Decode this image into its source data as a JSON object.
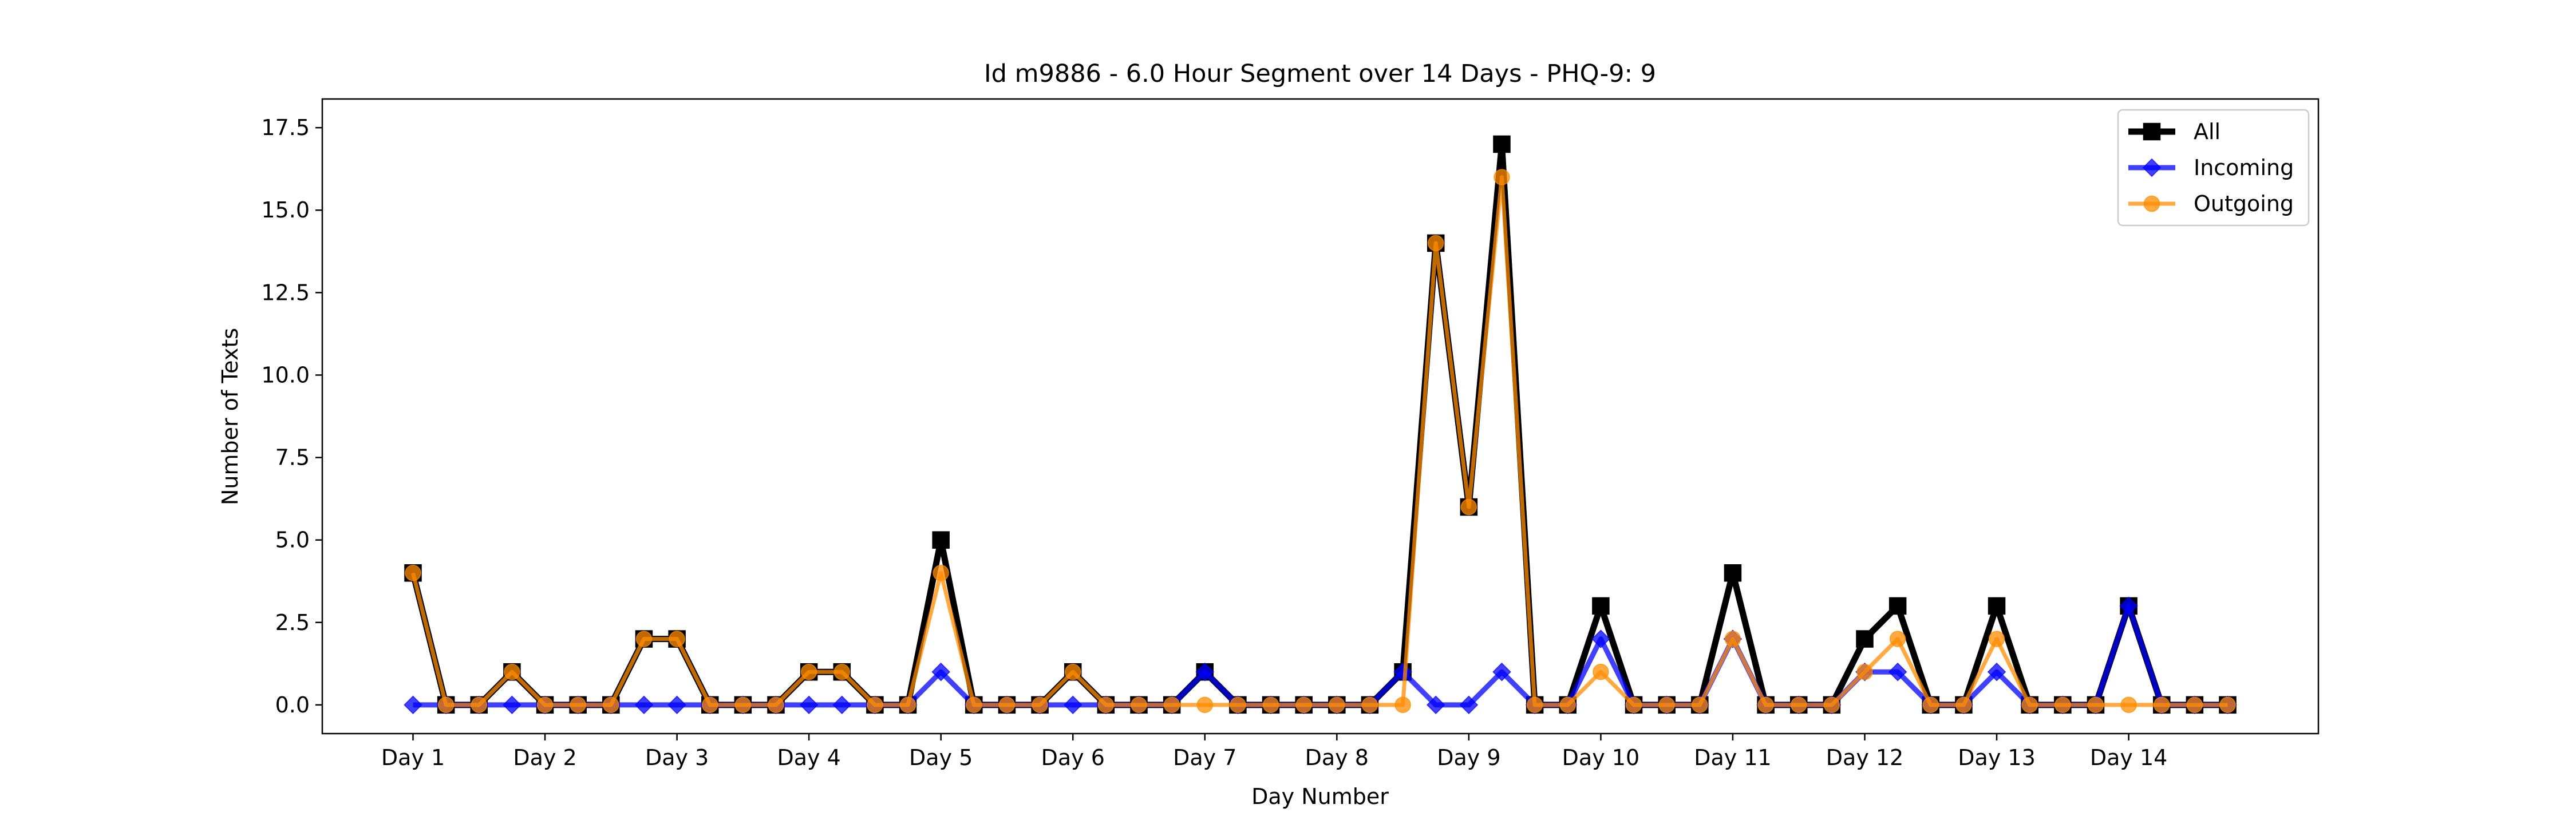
{
  "chart_data": {
    "type": "line",
    "title": "Id m9886 - 6.0 Hour Segment over 14 Days - PHQ-9: 9",
    "xlabel": "Day Number",
    "ylabel": "Number of Texts",
    "ylim": [
      -0.87,
      18.37
    ],
    "yticks": [
      0.0,
      2.5,
      5.0,
      7.5,
      10.0,
      12.5,
      15.0,
      17.5
    ],
    "ytick_labels": [
      "0.0",
      "2.5",
      "5.0",
      "7.5",
      "10.0",
      "12.5",
      "15.0",
      "17.5"
    ],
    "xlim": [
      -2.75,
      57.75
    ],
    "xticks": [
      0,
      4,
      8,
      12,
      16,
      20,
      24,
      28,
      32,
      36,
      40,
      44,
      48,
      52
    ],
    "xtick_labels": [
      "Day 1",
      "Day 2",
      "Day 3",
      "Day 4",
      "Day 5",
      "Day 6",
      "Day 7",
      "Day 8",
      "Day 9",
      "Day 10",
      "Day 11",
      "Day 12",
      "Day 13",
      "Day 14"
    ],
    "grid": false,
    "legend_position": "top-right",
    "series": [
      {
        "name": "All",
        "color": "#000000",
        "marker": "square",
        "values": [
          4,
          0,
          0,
          1,
          0,
          0,
          0,
          2,
          2,
          0,
          0,
          0,
          1,
          1,
          0,
          0,
          5,
          0,
          0,
          0,
          1,
          0,
          0,
          0,
          1,
          0,
          0,
          0,
          0,
          0,
          1,
          14,
          6,
          17,
          0,
          0,
          3,
          0,
          0,
          0,
          4,
          0,
          0,
          0,
          2,
          3,
          0,
          0,
          3,
          0,
          0,
          0,
          3,
          0,
          0,
          0
        ]
      },
      {
        "name": "Incoming",
        "color": "#0000ff",
        "marker": "diamond",
        "values": [
          0,
          0,
          0,
          0,
          0,
          0,
          0,
          0,
          0,
          0,
          0,
          0,
          0,
          0,
          0,
          0,
          1,
          0,
          0,
          0,
          0,
          0,
          0,
          0,
          1,
          0,
          0,
          0,
          0,
          0,
          1,
          0,
          0,
          1,
          0,
          0,
          2,
          0,
          0,
          0,
          2,
          0,
          0,
          0,
          1,
          1,
          0,
          0,
          1,
          0,
          0,
          0,
          3,
          0,
          0,
          0
        ]
      },
      {
        "name": "Outgoing",
        "color": "#ff8c00",
        "marker": "circle",
        "values": [
          4,
          0,
          0,
          1,
          0,
          0,
          0,
          2,
          2,
          0,
          0,
          0,
          1,
          1,
          0,
          0,
          4,
          0,
          0,
          0,
          1,
          0,
          0,
          0,
          0,
          0,
          0,
          0,
          0,
          0,
          0,
          14,
          6,
          16,
          0,
          0,
          1,
          0,
          0,
          0,
          2,
          0,
          0,
          0,
          1,
          2,
          0,
          0,
          2,
          0,
          0,
          0,
          0,
          0,
          0,
          0
        ]
      }
    ]
  }
}
